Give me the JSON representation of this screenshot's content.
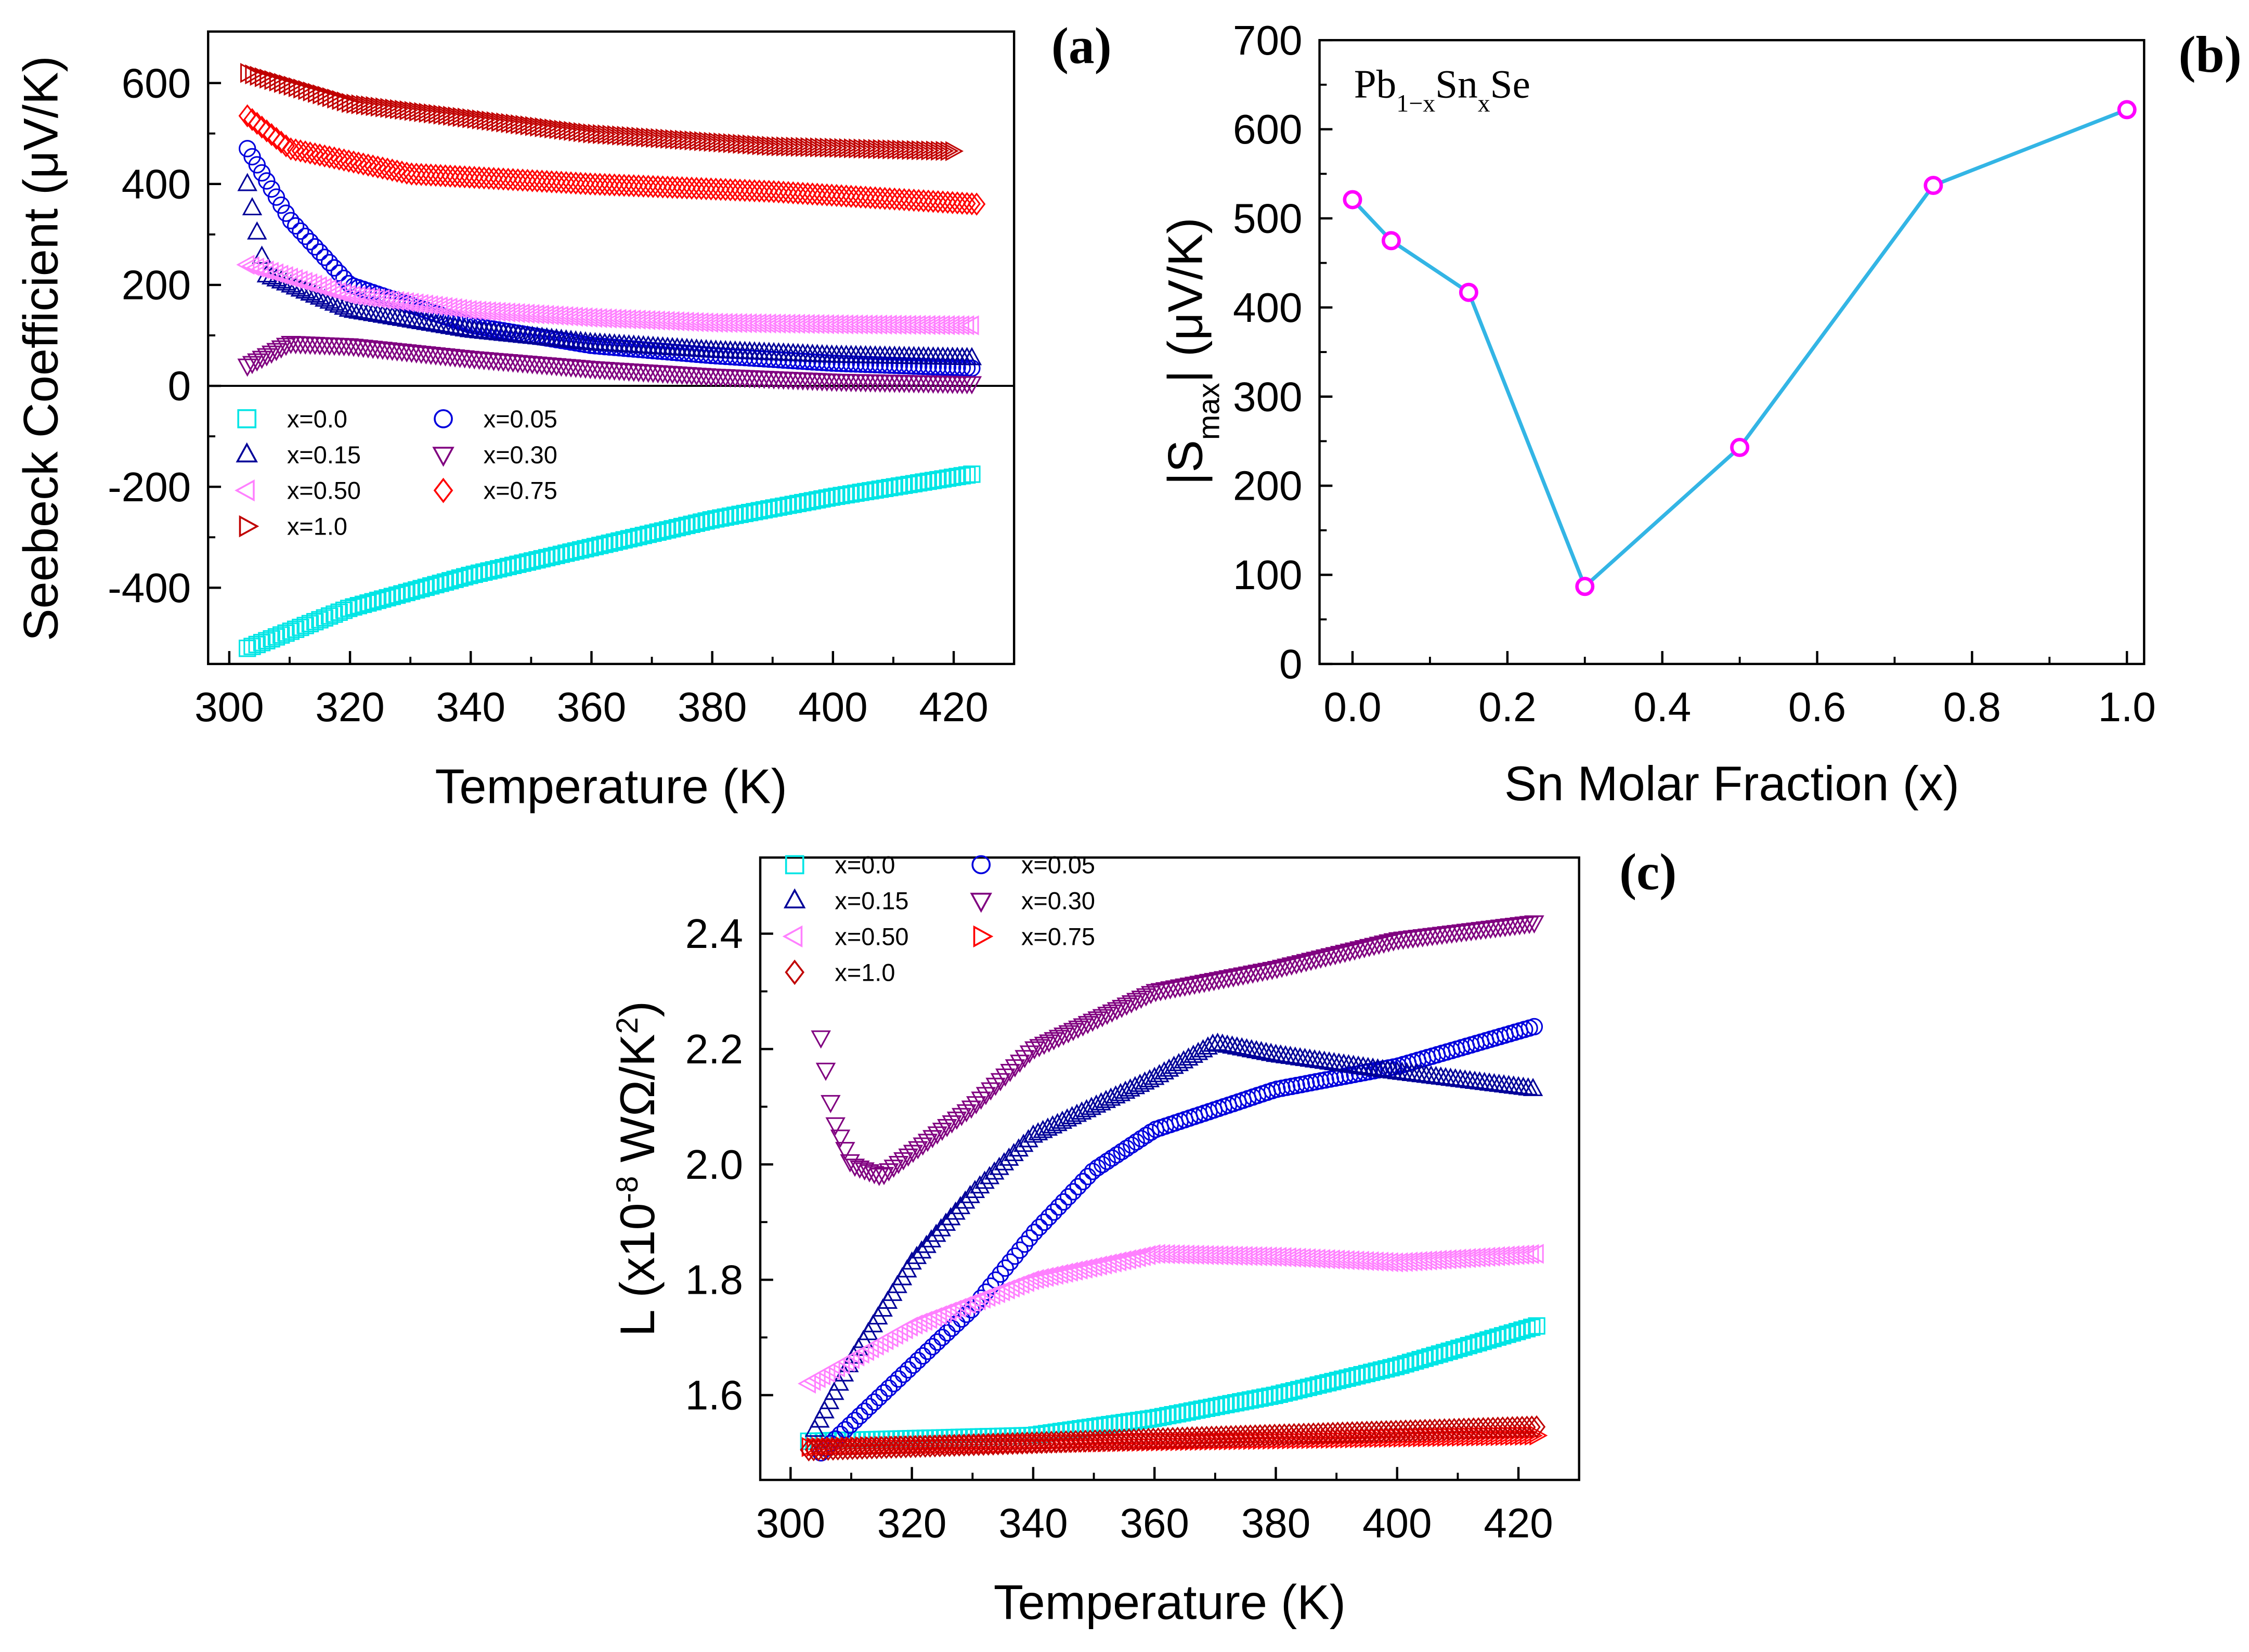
{
  "chart_data": [
    {
      "id": "a",
      "type": "scatter",
      "panel_label": "(a)",
      "xlabel": "Temperature (K)",
      "ylabel": "Seebeck Coefficient (μV/K)",
      "xlim": [
        296.5,
        430
      ],
      "ylim": [
        -551,
        702
      ],
      "xticks": [
        300,
        320,
        340,
        360,
        380,
        400,
        420
      ],
      "yticks": [
        -400,
        -200,
        0,
        200,
        400,
        600
      ],
      "zero_line": true,
      "legend_position": "center-left",
      "series": [
        {
          "name": "x=0.0",
          "marker": "square",
          "color": "#00e5e5",
          "points": [
            [
              303,
              -520
            ],
            [
              320,
              -440
            ],
            [
              340,
              -375
            ],
            [
              360,
              -320
            ],
            [
              380,
              -265
            ],
            [
              400,
              -220
            ],
            [
              423,
              -175
            ]
          ]
        },
        {
          "name": "x=0.05",
          "marker": "circle",
          "color": "#0000dd",
          "points": [
            [
              303,
              470
            ],
            [
              310,
              330
            ],
            [
              320,
              200
            ],
            [
              340,
              120
            ],
            [
              360,
              80
            ],
            [
              380,
              60
            ],
            [
              400,
              45
            ],
            [
              423,
              35
            ]
          ]
        },
        {
          "name": "x=0.15",
          "marker": "triangle-up",
          "color": "#000099",
          "points": [
            [
              303,
              400
            ],
            [
              306,
              220
            ],
            [
              320,
              150
            ],
            [
              340,
              110
            ],
            [
              360,
              85
            ],
            [
              380,
              70
            ],
            [
              400,
              60
            ],
            [
              423,
              55
            ]
          ]
        },
        {
          "name": "x=0.30",
          "marker": "triangle-down",
          "color": "#800080",
          "points": [
            [
              303,
              40
            ],
            [
              310,
              85
            ],
            [
              320,
              80
            ],
            [
              340,
              55
            ],
            [
              360,
              35
            ],
            [
              380,
              20
            ],
            [
              400,
              10
            ],
            [
              423,
              5
            ]
          ]
        },
        {
          "name": "x=0.50",
          "marker": "triangle-left",
          "color": "#ff80ff",
          "points": [
            [
              303,
              240
            ],
            [
              320,
              180
            ],
            [
              340,
              150
            ],
            [
              360,
              135
            ],
            [
              380,
              125
            ],
            [
              400,
              122
            ],
            [
              423,
              120
            ]
          ]
        },
        {
          "name": "x=0.75",
          "marker": "diamond",
          "color": "#ff0000",
          "points": [
            [
              303,
              535
            ],
            [
              310,
              470
            ],
            [
              330,
              420
            ],
            [
              360,
              400
            ],
            [
              390,
              385
            ],
            [
              424,
              360
            ]
          ]
        },
        {
          "name": "x=1.0",
          "marker": "triangle-right",
          "color": "#c00000",
          "points": [
            [
              303,
              620
            ],
            [
              320,
              560
            ],
            [
              340,
              530
            ],
            [
              360,
              500
            ],
            [
              390,
              475
            ],
            [
              420,
              465
            ]
          ]
        }
      ]
    },
    {
      "id": "b",
      "type": "line",
      "panel_label": "(b)",
      "annotation": {
        "parts": [
          [
            "Pb",
            ""
          ],
          [
            "1−x",
            "sub"
          ],
          [
            "Sn",
            ""
          ],
          [
            "x",
            "sub"
          ],
          [
            "Se",
            ""
          ]
        ]
      },
      "xlabel": "Sn Molar Fraction (x)",
      "ylabel": {
        "parts": [
          [
            "|S",
            ""
          ],
          [
            "max",
            "sub"
          ],
          [
            "| (μV/K)",
            ""
          ]
        ]
      },
      "xlim": [
        -0.0426,
        1.0222
      ],
      "ylim": [
        0,
        700
      ],
      "xticks": [
        "0.0",
        "0.2",
        "0.4",
        "0.6",
        "0.8",
        "1.0"
      ],
      "yticks": [
        0,
        100,
        200,
        300,
        400,
        500,
        600,
        700
      ],
      "line_color": "#33b5e5",
      "marker_color": "#ff00ff",
      "x": [
        0,
        0.05,
        0.15,
        0.3,
        0.5,
        0.75,
        1.0
      ],
      "y": [
        521,
        475,
        417,
        87,
        243,
        537,
        622
      ]
    },
    {
      "id": "c",
      "type": "scatter",
      "panel_label": "(c)",
      "xlabel": "Temperature (K)",
      "ylabel": {
        "parts": [
          [
            "L (x10",
            ""
          ],
          [
            "-8",
            "sup"
          ],
          [
            " WΩ/K",
            ""
          ],
          [
            "2",
            "sup"
          ],
          [
            ")",
            ""
          ]
        ]
      },
      "xlim": [
        295,
        430
      ],
      "ylim": [
        1.453,
        2.532
      ],
      "xticks": [
        300,
        320,
        340,
        360,
        380,
        400,
        420
      ],
      "yticks": [
        "1.6",
        "1.8",
        "2.0",
        "2.2",
        "2.4"
      ],
      "legend_position": "top-left",
      "series": [
        {
          "name": "x=0.0",
          "marker": "square",
          "color": "#00e5e5",
          "points": [
            [
              303,
              1.52
            ],
            [
              340,
              1.53
            ],
            [
              360,
              1.56
            ],
            [
              380,
              1.6
            ],
            [
              400,
              1.65
            ],
            [
              423,
              1.72
            ]
          ]
        },
        {
          "name": "x=0.05",
          "marker": "circle",
          "color": "#0000dd",
          "points": [
            [
              305,
              1.5
            ],
            [
              310,
              1.55
            ],
            [
              320,
              1.65
            ],
            [
              330,
              1.75
            ],
            [
              340,
              1.88
            ],
            [
              350,
              1.99
            ],
            [
              360,
              2.06
            ],
            [
              380,
              2.13
            ],
            [
              400,
              2.17
            ],
            [
              423,
              2.24
            ]
          ]
        },
        {
          "name": "x=0.15",
          "marker": "triangle-up",
          "color": "#000099",
          "points": [
            [
              304,
              1.54
            ],
            [
              310,
              1.66
            ],
            [
              320,
              1.83
            ],
            [
              330,
              1.95
            ],
            [
              340,
              2.05
            ],
            [
              360,
              2.15
            ],
            [
              370,
              2.21
            ],
            [
              380,
              2.19
            ],
            [
              400,
              2.16
            ],
            [
              423,
              2.13
            ]
          ]
        },
        {
          "name": "x=0.30",
          "marker": "triangle-down",
          "color": "#800080",
          "points": [
            [
              305,
              2.22
            ],
            [
              307,
              2.08
            ],
            [
              310,
              2.0
            ],
            [
              315,
              1.98
            ],
            [
              330,
              2.1
            ],
            [
              340,
              2.2
            ],
            [
              360,
              2.3
            ],
            [
              380,
              2.34
            ],
            [
              400,
              2.39
            ],
            [
              423,
              2.42
            ]
          ]
        },
        {
          "name": "x=0.50",
          "marker": "triangle-left",
          "color": "#ff80ff",
          "points": [
            [
              303,
              1.62
            ],
            [
              320,
              1.72
            ],
            [
              340,
              1.8
            ],
            [
              360,
              1.845
            ],
            [
              380,
              1.84
            ],
            [
              400,
              1.83
            ],
            [
              423,
              1.845
            ]
          ]
        },
        {
          "name": "x=0.75",
          "marker": "triangle-right",
          "color": "#ff0000",
          "points": [
            [
              303,
              1.51
            ],
            [
              423,
              1.53
            ]
          ]
        },
        {
          "name": "x=1.0",
          "marker": "diamond",
          "color": "#c00000",
          "points": [
            [
              303,
              1.505
            ],
            [
              423,
              1.545
            ]
          ]
        }
      ]
    }
  ]
}
